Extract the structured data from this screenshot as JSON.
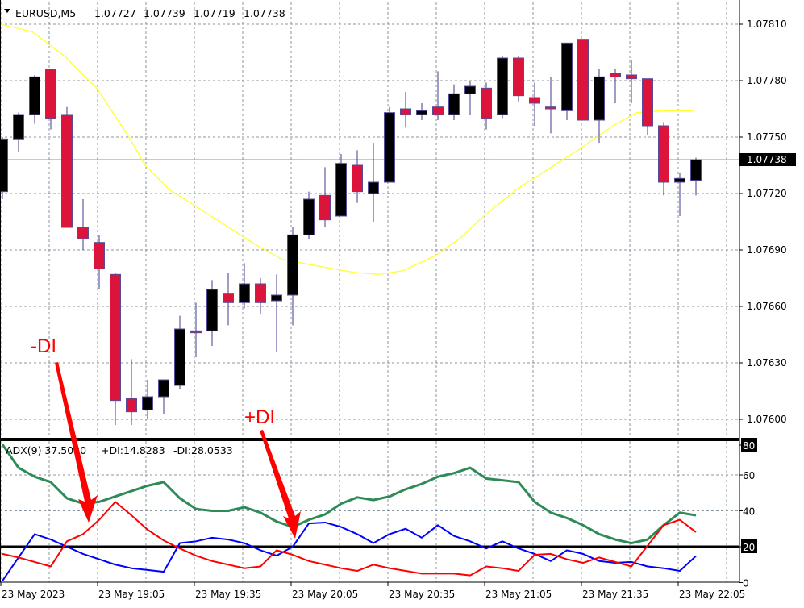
{
  "header": {
    "symbol": "EURUSD,M5",
    "open": "1.07727",
    "high": "1.07739",
    "low": "1.07719",
    "close": "1.07738"
  },
  "indicator_header": {
    "adx": "ADX(9) 37.5030",
    "plus_di": "+DI:14.8283",
    "minus_di": "-DI:28.0533"
  },
  "annotations": {
    "minus_di": "-DI",
    "plus_di": "+DI"
  },
  "price_axis": [
    "1.07810",
    "1.07780",
    "1.07750",
    "1.07720",
    "1.07690",
    "1.07660",
    "1.07630",
    "1.07600"
  ],
  "current_price_label": "1.07738",
  "adx_axis": [
    "80",
    "60",
    "40",
    "20",
    "0"
  ],
  "time_axis": [
    "23 May 2023",
    "23 May 19:05",
    "23 May 19:35",
    "23 May 20:05",
    "23 May 20:35",
    "23 May 21:05",
    "23 May 21:35",
    "23 May 22:05"
  ],
  "colors": {
    "bull": "#000000",
    "bear": "#dc143c",
    "wick": "#3b3b8f",
    "ma": "#ffff33",
    "adx": "#2e8b57",
    "plus_di": "#0000ff",
    "minus_di": "#ff0000",
    "grid": "#8c96a0"
  },
  "chart_data": [
    {
      "type": "candlestick",
      "title": "EURUSD,M5",
      "ylim": [
        1.07586,
        1.07822
      ],
      "current_price": 1.07738,
      "ohlc": [
        [
          1.07721,
          1.0775,
          1.07717,
          1.07749
        ],
        [
          1.07749,
          1.07763,
          1.07742,
          1.07762
        ],
        [
          1.07762,
          1.07783,
          1.07757,
          1.07782
        ],
        [
          1.07786,
          1.07786,
          1.07754,
          1.0776
        ],
        [
          1.07762,
          1.07766,
          1.07702,
          1.07702
        ],
        [
          1.07702,
          1.07717,
          1.0769,
          1.07696
        ],
        [
          1.07694,
          1.07698,
          1.07669,
          1.0768
        ],
        [
          1.07677,
          1.07678,
          1.07597,
          1.0761
        ],
        [
          1.07611,
          1.07632,
          1.07597,
          1.07604
        ],
        [
          1.07605,
          1.07621,
          1.076,
          1.07612
        ],
        [
          1.07612,
          1.07621,
          1.07603,
          1.07621
        ],
        [
          1.07618,
          1.07655,
          1.07616,
          1.07648
        ],
        [
          1.07647,
          1.07662,
          1.07633,
          1.07646
        ],
        [
          1.07647,
          1.07674,
          1.07639,
          1.07669
        ],
        [
          1.07667,
          1.07678,
          1.0765,
          1.07662
        ],
        [
          1.07662,
          1.07683,
          1.07659,
          1.07672
        ],
        [
          1.07672,
          1.07675,
          1.07656,
          1.07662
        ],
        [
          1.07663,
          1.07677,
          1.07636,
          1.07666
        ],
        [
          1.07666,
          1.07702,
          1.0765,
          1.07698
        ],
        [
          1.07698,
          1.07721,
          1.07696,
          1.07717
        ],
        [
          1.07719,
          1.07734,
          1.07702,
          1.07706
        ],
        [
          1.07708,
          1.07741,
          1.07708,
          1.07736
        ],
        [
          1.07735,
          1.07743,
          1.07715,
          1.07721
        ],
        [
          1.0772,
          1.07747,
          1.07705,
          1.07726
        ],
        [
          1.07726,
          1.07766,
          1.07726,
          1.07763
        ],
        [
          1.07765,
          1.07774,
          1.07755,
          1.07762
        ],
        [
          1.07762,
          1.07768,
          1.07759,
          1.07764
        ],
        [
          1.07766,
          1.07785,
          1.07759,
          1.07762
        ],
        [
          1.07762,
          1.07778,
          1.07759,
          1.07773
        ],
        [
          1.07773,
          1.0778,
          1.07762,
          1.07777
        ],
        [
          1.07776,
          1.07779,
          1.07754,
          1.0776
        ],
        [
          1.07762,
          1.07793,
          1.0776,
          1.07792
        ],
        [
          1.07792,
          1.07793,
          1.07769,
          1.07772
        ],
        [
          1.07771,
          1.07779,
          1.07756,
          1.07768
        ],
        [
          1.07766,
          1.07782,
          1.07752,
          1.07765
        ],
        [
          1.07764,
          1.078,
          1.07759,
          1.078
        ],
        [
          1.07802,
          1.07802,
          1.07759,
          1.07759
        ],
        [
          1.07759,
          1.07786,
          1.07747,
          1.07782
        ],
        [
          1.07784,
          1.07786,
          1.07768,
          1.07782
        ],
        [
          1.07783,
          1.07791,
          1.07768,
          1.07781
        ],
        [
          1.07781,
          1.07781,
          1.07751,
          1.07756
        ],
        [
          1.07756,
          1.07758,
          1.07719,
          1.07726
        ],
        [
          1.07726,
          1.07731,
          1.07708,
          1.07728
        ],
        [
          1.07727,
          1.07739,
          1.07719,
          1.07738
        ]
      ],
      "moving_average": [
        [
          -0.15,
          1.0781
        ],
        [
          1.85,
          1.07806
        ],
        [
          3.85,
          1.07793
        ],
        [
          5.85,
          1.07776
        ],
        [
          7.85,
          1.0775
        ],
        [
          8.85,
          1.07735
        ],
        [
          10.35,
          1.07722
        ],
        [
          11.85,
          1.07714
        ],
        [
          13.85,
          1.07703
        ],
        [
          15.85,
          1.07692
        ],
        [
          17.35,
          1.07685
        ],
        [
          19.85,
          1.07681
        ],
        [
          21.85,
          1.07678
        ],
        [
          23.35,
          1.07677
        ],
        [
          24.85,
          1.07679
        ],
        [
          26.85,
          1.07687
        ],
        [
          28.35,
          1.07696
        ],
        [
          29.85,
          1.07708
        ],
        [
          31.85,
          1.07722
        ],
        [
          33.85,
          1.07733
        ],
        [
          35.85,
          1.07744
        ],
        [
          37.85,
          1.07756
        ],
        [
          39.35,
          1.07763
        ],
        [
          40.85,
          1.07764
        ],
        [
          42.85,
          1.07764
        ]
      ]
    },
    {
      "type": "line",
      "title": "ADX(9)",
      "ylim": [
        0,
        80
      ],
      "levels": [
        20,
        80
      ],
      "series": [
        {
          "name": "ADX",
          "values": [
            77,
            64,
            59,
            56,
            47,
            44,
            45,
            48,
            51,
            54,
            56,
            47,
            41,
            40,
            40,
            42,
            39,
            34,
            31,
            35,
            38,
            44,
            47.5,
            46,
            48,
            52,
            55,
            59,
            61,
            64,
            58,
            57,
            56,
            45,
            39,
            36,
            32,
            27,
            24,
            22,
            24,
            32,
            39,
            37.5
          ]
        },
        {
          "name": "+DI",
          "values": [
            1,
            14,
            27,
            24,
            20,
            16,
            13,
            10,
            8,
            7,
            6,
            22,
            23,
            25,
            24,
            22,
            18,
            15,
            20,
            33,
            33.5,
            31,
            27,
            22,
            27,
            30,
            25,
            32,
            26,
            23,
            19,
            23,
            19,
            16,
            12,
            18,
            16,
            12,
            11,
            11.5,
            9,
            8,
            6.5,
            14.8
          ]
        },
        {
          "name": "-DI",
          "values": [
            16,
            14,
            11.5,
            9,
            23,
            27,
            35,
            45,
            37.5,
            29.5,
            23.5,
            19,
            15,
            12,
            10,
            8,
            9,
            18,
            15.5,
            12,
            10,
            8,
            6.5,
            10,
            8,
            6.5,
            5,
            5,
            5,
            4,
            9,
            8,
            6.5,
            15.5,
            16,
            13,
            11,
            14,
            11.5,
            9,
            20.5,
            32,
            35,
            28.1
          ]
        }
      ]
    }
  ]
}
